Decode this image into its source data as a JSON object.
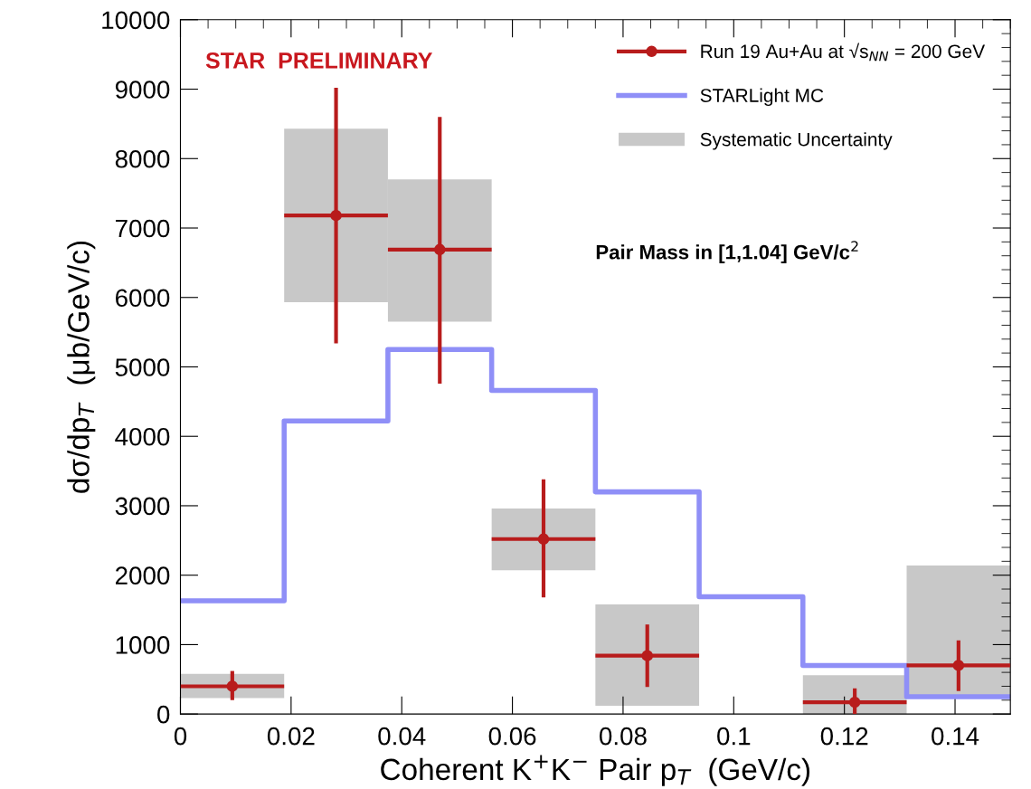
{
  "chart_data": {
    "type": "scatter",
    "xlabel": "Coherent K$^{+}$K$^{−}$ Pair p$_{T}$  (GeV/c)",
    "ylabel": "dσ/dp$_{T}$  (μb/GeV/c)",
    "xlim": [
      0,
      0.15
    ],
    "ylim": [
      0,
      10000
    ],
    "xticks": [
      0,
      0.02,
      0.04,
      0.06,
      0.08,
      0.1,
      0.12,
      0.14
    ],
    "yticks": [
      0,
      1000,
      2000,
      3000,
      4000,
      5000,
      6000,
      7000,
      8000,
      9000,
      10000
    ],
    "grid": false,
    "legend": "top right",
    "annotations": [
      {
        "text": "STAR  PRELIMINARY"
      },
      {
        "text": "Pair Mass in [1,1.04] GeV/c$^{2}$"
      }
    ],
    "series": [
      {
        "type": "bar",
        "name": "Systematic Uncertainty",
        "color": "#c8c8c8",
        "x": [
          0.009375,
          0.028125,
          0.046875,
          0.065625,
          0.084375,
          0.121875,
          0.140625
        ],
        "base": [
          230,
          5930,
          5650,
          2070,
          120,
          0,
          230
        ],
        "values": [
          350,
          2500,
          2050,
          890,
          1460,
          560,
          1910
        ]
      },
      {
        "type": "step",
        "name": "STARLight MC",
        "color": "#8f8ff7",
        "x": [
          0,
          0.01875,
          0.0375,
          0.05625,
          0.075,
          0.09375,
          0.1125,
          0.13125,
          0.15
        ],
        "values": [
          1630,
          4220,
          5250,
          4660,
          3200,
          1690,
          700,
          250,
          250
        ]
      },
      {
        "name": "Run 19 Au+Au at √s$_{NN}$ = 200 GeV",
        "color": "#b81c1c",
        "marker": "circle",
        "x": [
          0.009375,
          0.028125,
          0.046875,
          0.065625,
          0.084375,
          0.121875,
          0.140625
        ],
        "values": [
          400,
          7180,
          6690,
          2520,
          840,
          170,
          700
        ],
        "errors": [
          [
            200,
            620
          ],
          [
            5340,
            9020
          ],
          [
            4760,
            8600
          ],
          [
            1680,
            3380
          ],
          [
            390,
            1290
          ],
          [
            0,
            370
          ],
          [
            330,
            1060
          ]
        ],
        "xerrors": [
          0.009375,
          0.009375,
          0.009375,
          0.009375,
          0.009375,
          0.009375,
          0.009375
        ]
      }
    ]
  }
}
